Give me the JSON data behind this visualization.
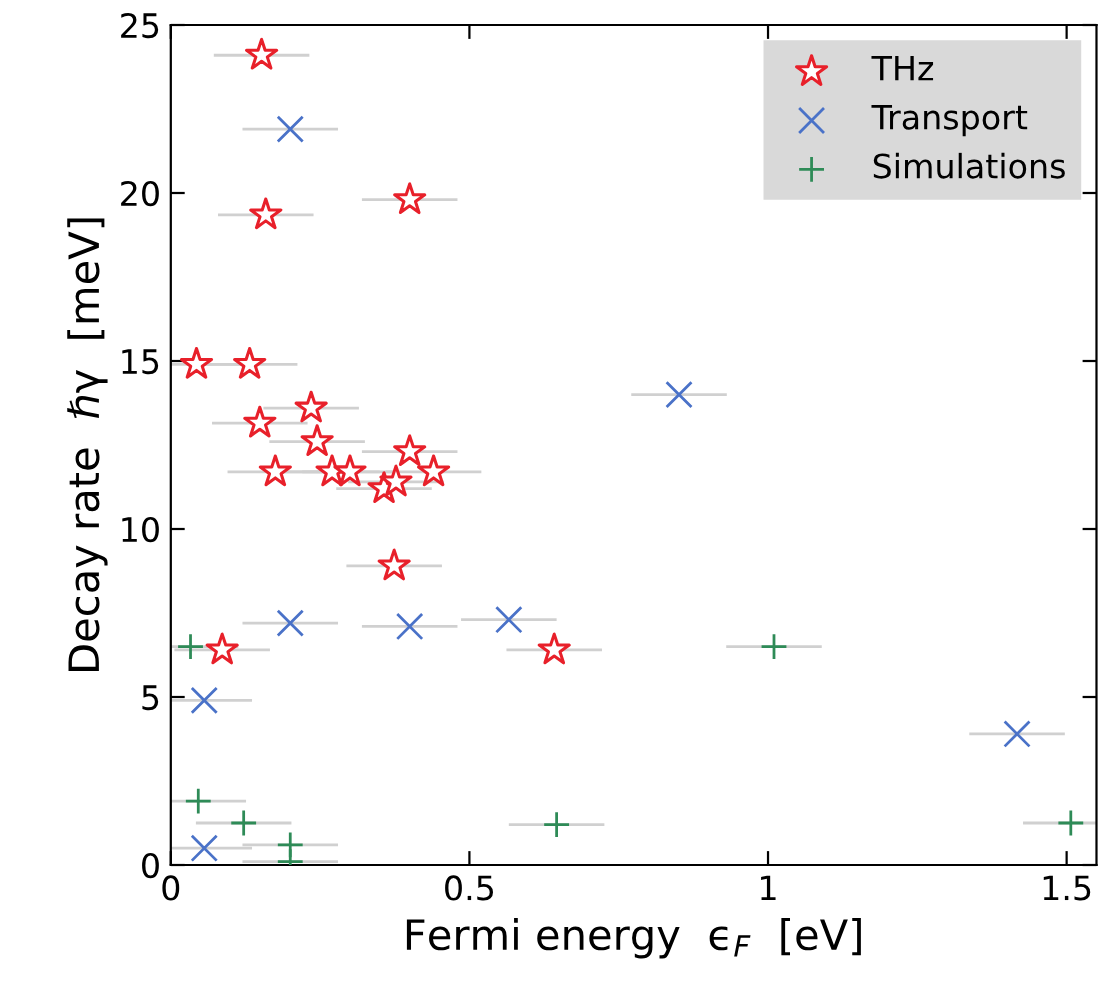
{
  "chart_data": {
    "type": "scatter",
    "xlabel": "Fermi energy  ϵ$_{F}$  [eV]",
    "ylabel": "Decay rate  ℏγ  [meV]",
    "xlim": [
      0,
      1.55
    ],
    "xticks": [
      0,
      0.5,
      1,
      1.5
    ],
    "ylim": [
      0,
      25
    ],
    "yticks": [
      0,
      5,
      10,
      15,
      20,
      25
    ],
    "grid": false,
    "legend": "top right",
    "series": [
      {
        "name": "THz",
        "color": "#e8202a",
        "marker": "star",
        "x": [
          0.152,
          0.159,
          0.4,
          0.043,
          0.132,
          0.149,
          0.235,
          0.245,
          0.175,
          0.27,
          0.3,
          0.357,
          0.377,
          0.4,
          0.44,
          0.374,
          0.086,
          0.642
        ],
        "values": [
          24.1,
          19.35,
          19.8,
          14.9,
          14.9,
          13.15,
          13.6,
          12.6,
          11.7,
          11.7,
          11.7,
          11.2,
          11.4,
          12.3,
          11.7,
          8.9,
          6.4,
          6.4
        ],
        "xerrors": [
          0.08,
          0.08,
          0.08,
          0.08,
          0.08,
          0.08,
          0.08,
          0.08,
          0.08,
          0.08,
          0.08,
          0.08,
          0.08,
          0.08,
          0.08,
          0.08,
          0.08,
          0.08
        ]
      },
      {
        "name": "Transport",
        "color": "#4a72c8",
        "marker": "cross",
        "x": [
          0.2,
          0.2,
          0.4,
          0.566,
          0.851,
          1.417,
          0.056,
          0.056
        ],
        "values": [
          21.9,
          7.2,
          7.1,
          7.3,
          14.0,
          3.9,
          4.9,
          0.5
        ],
        "xerrors": [
          0.08,
          0.08,
          0.08,
          0.08,
          0.08,
          0.08,
          0.08,
          0.08
        ]
      },
      {
        "name": "Simulations",
        "color": "#2e8b57",
        "marker": "plus",
        "x": [
          0.033,
          0.046,
          0.122,
          0.2,
          0.2,
          0.646,
          1.01,
          1.507
        ],
        "values": [
          6.5,
          1.9,
          1.25,
          0.6,
          0.1,
          1.2,
          6.5,
          1.25
        ],
        "xerrors": [
          0.08,
          0.08,
          0.08,
          0.08,
          0.08,
          0.08,
          0.08,
          [
            1.427,
            1.55
          ]
        ]
      }
    ]
  }
}
